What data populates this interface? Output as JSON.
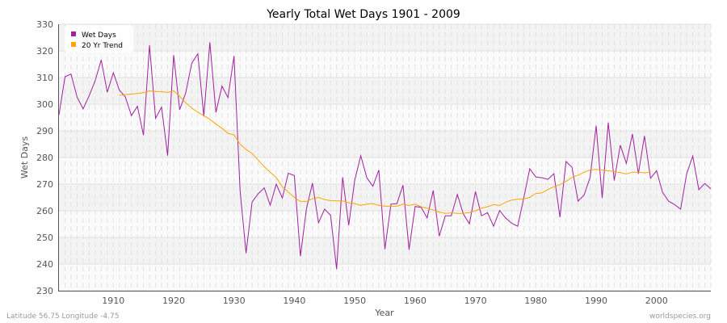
{
  "chart_data": {
    "type": "line",
    "title": "Yearly Total Wet Days 1901 - 2009",
    "xlabel": "Year",
    "ylabel": "Wet Days",
    "xlim": [
      1901,
      2009
    ],
    "ylim": [
      230,
      330
    ],
    "x_ticks": [
      1910,
      1920,
      1930,
      1940,
      1950,
      1960,
      1970,
      1980,
      1990,
      2000
    ],
    "y_ticks": [
      230,
      240,
      250,
      260,
      270,
      280,
      290,
      300,
      310,
      320,
      330
    ],
    "grid": true,
    "legend_position": "top-left",
    "series": [
      {
        "name": "Wet Days",
        "color": "#a020a0",
        "x_start": 1901,
        "values": [
          296,
          310.3,
          311.3,
          302.7,
          298.2,
          303.2,
          308.8,
          316.6,
          304.5,
          311.8,
          305.3,
          302.7,
          295.7,
          299.2,
          288.4,
          322.1,
          294.7,
          298.9,
          280.7,
          318.4,
          297.9,
          304.2,
          315.4,
          318.9,
          295.5,
          323.2,
          296.9,
          306.8,
          302.5,
          318.1,
          267.6,
          244.1,
          263.3,
          266.4,
          268.6,
          262.1,
          270,
          264.8,
          274.1,
          273.2,
          242.9,
          260.8,
          270.4,
          255.5,
          260.6,
          258.3,
          238.1,
          272.6,
          254.5,
          271.4,
          280.7,
          272.4,
          269.2,
          275.3,
          245.6,
          262.5,
          262.7,
          269.6,
          245.4,
          261.6,
          261.3,
          257.3,
          267.6,
          250.5,
          258.1,
          258.1,
          266.1,
          258.8,
          255.1,
          267.2,
          258.1,
          259.3,
          254.2,
          260.1,
          257.3,
          255.3,
          254.2,
          264.8,
          275.8,
          272.7,
          272.4,
          271.8,
          273.9,
          257.6,
          278.5,
          276.3,
          263.6,
          265.9,
          272.6,
          291.9,
          264.8,
          293.1,
          271.4,
          284.6,
          277.8,
          288.8,
          273.9,
          288.1,
          272.2,
          275,
          266.9,
          263.6,
          262.3,
          260.6,
          273.9,
          280.5,
          267.9,
          270.2,
          268.2
        ]
      },
      {
        "name": "20 Yr Trend",
        "color": "#ffa500",
        "x_start": 1911,
        "values": [
          303.3,
          303.6,
          303.8,
          304,
          304.3,
          305,
          304.8,
          304.7,
          304.4,
          305,
          303,
          300.5,
          298.5,
          297,
          295.7,
          294.3,
          292.5,
          291,
          289,
          288.5,
          285,
          283,
          281.5,
          279,
          276.5,
          274.5,
          272.5,
          269,
          267,
          265,
          263.5,
          263.5,
          264.5,
          265,
          264.2,
          263.8,
          263.7,
          263.7,
          263,
          262.7,
          262,
          262.5,
          262.7,
          262,
          261.7,
          261.7,
          261.7,
          262.5,
          262,
          262.5,
          261.5,
          261,
          260.3,
          259.5,
          259,
          259.2,
          259,
          259,
          259.3,
          260,
          261,
          261.5,
          262.3,
          262,
          263.2,
          264,
          264.3,
          264.5,
          265,
          266.5,
          266.7,
          268,
          269,
          269.8,
          271,
          272.5,
          273.3,
          274.5,
          275.3,
          275.5,
          275.3,
          275,
          274.7,
          274.3,
          273.8,
          274.5,
          274.5,
          274.2,
          274.5
        ]
      }
    ]
  },
  "footer": {
    "location": "Latitude 56.75 Longitude -4.75",
    "source": "worldspecies.org"
  }
}
